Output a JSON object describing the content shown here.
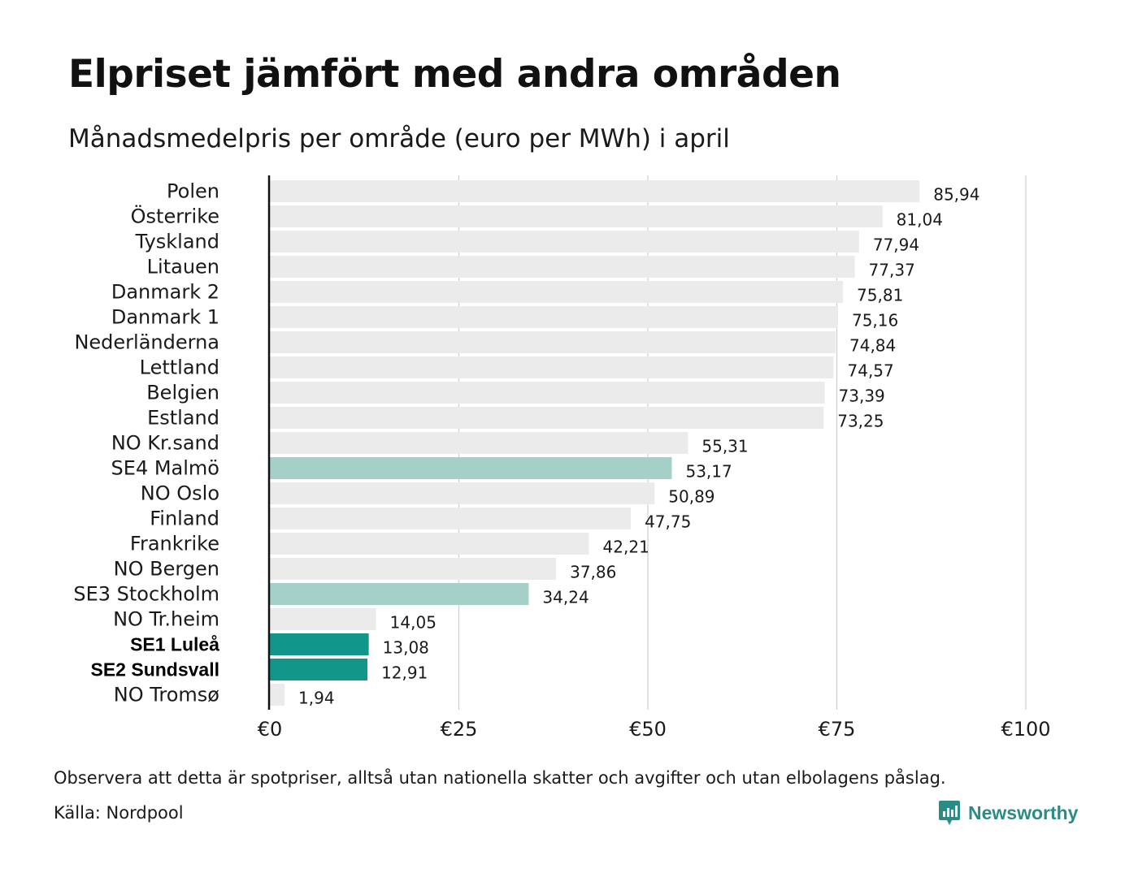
{
  "title": "Elpriset jämfört med andra områden",
  "subtitle": "Månadsmedelpris per område (euro per MWh) i april",
  "note": "Observera att detta är spotpriser, alltså utan nationella skatter och avgifter och utan elbolagens påslag.",
  "source": "Källa: Nordpool",
  "brand": {
    "name": "Newsworthy",
    "icon": "newsworthy-logo-icon"
  },
  "colors": {
    "default_bar": "#ebebeb",
    "light_highlight": "#a5cfc9",
    "dark_highlight": "#13968a",
    "grid": "#cfcfcf",
    "axis": "#111111",
    "brand": "#2a8c84"
  },
  "chart_data": {
    "type": "bar",
    "orientation": "horizontal",
    "categories": [
      "Polen",
      "Österrike",
      "Tyskland",
      "Litauen",
      "Danmark 2",
      "Danmark 1",
      "Nederländerna",
      "Lettland",
      "Belgien",
      "Estland",
      "NO Kr.sand",
      "SE4 Malmö",
      "NO Oslo",
      "Finland",
      "Frankrike",
      "NO Bergen",
      "SE3 Stockholm",
      "NO Tr.heim",
      "SE1 Luleå",
      "SE2 Sundsvall",
      "NO Tromsø"
    ],
    "values": [
      85.94,
      81.04,
      77.94,
      77.37,
      75.81,
      75.16,
      74.84,
      74.57,
      73.39,
      73.25,
      55.31,
      53.17,
      50.89,
      47.75,
      42.21,
      37.86,
      34.24,
      14.05,
      13.08,
      12.91,
      1.94
    ],
    "value_labels": [
      "85,94",
      "81,04",
      "77,94",
      "77,37",
      "75,81",
      "75,16",
      "74,84",
      "74,57",
      "73,39",
      "73,25",
      "55,31",
      "53,17",
      "50,89",
      "47,75",
      "42,21",
      "37,86",
      "34,24",
      "14,05",
      "13,08",
      "12,91",
      "1,94"
    ],
    "highlight": [
      "none",
      "none",
      "none",
      "none",
      "none",
      "none",
      "none",
      "none",
      "none",
      "none",
      "none",
      "light",
      "none",
      "none",
      "none",
      "none",
      "light",
      "none",
      "dark",
      "dark",
      "none"
    ],
    "xlim": [
      0,
      100
    ],
    "xticks": [
      0,
      25,
      50,
      75,
      100
    ],
    "xtick_labels": [
      "€0",
      "€25",
      "€50",
      "€75",
      "€100"
    ],
    "grid": true
  }
}
